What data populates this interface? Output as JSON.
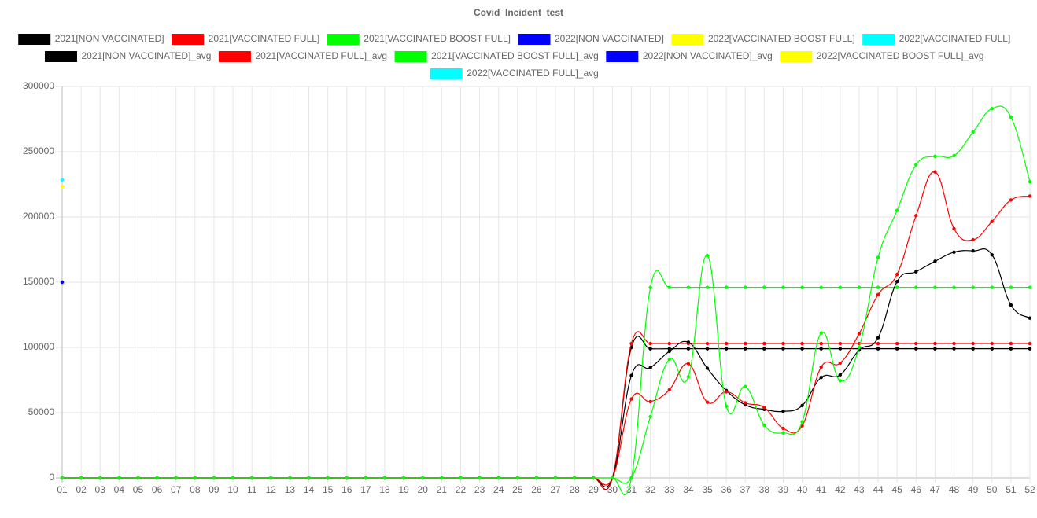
{
  "chart_data": {
    "type": "line",
    "title": "Covid_Incident_test",
    "categories": [
      "01",
      "02",
      "03",
      "04",
      "05",
      "06",
      "07",
      "08",
      "09",
      "10",
      "11",
      "12",
      "13",
      "14",
      "15",
      "16",
      "17",
      "18",
      "19",
      "20",
      "21",
      "22",
      "23",
      "24",
      "25",
      "26",
      "27",
      "28",
      "29",
      "30",
      "31",
      "32",
      "33",
      "34",
      "35",
      "36",
      "37",
      "38",
      "39",
      "40",
      "41",
      "42",
      "43",
      "44",
      "45",
      "46",
      "47",
      "48",
      "49",
      "50",
      "51",
      "52"
    ],
    "ylim": [
      0,
      300000
    ],
    "yticks": [
      0,
      50000,
      100000,
      150000,
      200000,
      250000,
      300000
    ],
    "grid": true,
    "series": [
      {
        "name": "2021[NON VACCINATED]",
        "color": "#000000",
        "values": [
          0,
          0,
          0,
          0,
          0,
          0,
          0,
          0,
          0,
          0,
          0,
          0,
          0,
          0,
          0,
          0,
          0,
          0,
          0,
          0,
          0,
          0,
          0,
          0,
          0,
          0,
          0,
          0,
          0,
          0,
          100000,
          99000,
          99000,
          99000,
          99000,
          99000,
          99000,
          99000,
          99000,
          99000,
          99000,
          99000,
          99000,
          99000,
          99000,
          99000,
          99000,
          99000,
          99000,
          99000,
          99000,
          99000
        ]
      },
      {
        "name": "2021[VACCINATED FULL]",
        "color": "#ff0000",
        "values": [
          0,
          0,
          0,
          0,
          0,
          0,
          0,
          0,
          0,
          0,
          0,
          0,
          0,
          0,
          0,
          0,
          0,
          0,
          0,
          0,
          0,
          0,
          0,
          0,
          0,
          0,
          0,
          0,
          0,
          0,
          103000,
          103000,
          103000,
          103000,
          103000,
          103000,
          103000,
          103000,
          103000,
          103000,
          103000,
          103000,
          103000,
          103000,
          103000,
          103000,
          103000,
          103000,
          103000,
          103000,
          103000,
          103000
        ]
      },
      {
        "name": "2021[VACCINATED BOOST FULL]",
        "color": "#00ff00",
        "values": [
          0,
          0,
          0,
          0,
          0,
          0,
          0,
          0,
          0,
          0,
          0,
          0,
          0,
          0,
          0,
          0,
          0,
          0,
          0,
          0,
          0,
          0,
          0,
          0,
          0,
          0,
          0,
          0,
          0,
          0,
          0,
          146000,
          146000,
          146000,
          146000,
          146000,
          146000,
          146000,
          146000,
          146000,
          146000,
          146000,
          146000,
          146000,
          146000,
          146000,
          146000,
          146000,
          146000,
          146000,
          146000,
          146000
        ]
      },
      {
        "name": "2022[NON VACCINATED]",
        "color": "#0000ff",
        "values": [
          150000,
          null,
          null,
          null,
          null,
          null,
          null,
          null,
          null,
          null,
          null,
          null,
          null,
          null,
          null,
          null,
          null,
          null,
          null,
          null,
          null,
          null,
          null,
          null,
          null,
          null,
          null,
          null,
          null,
          null,
          null,
          null,
          null,
          null,
          null,
          null,
          null,
          null,
          null,
          null,
          null,
          null,
          null,
          null,
          null,
          null,
          null,
          null,
          null,
          null,
          null,
          null
        ]
      },
      {
        "name": "2022[VACCINATED BOOST FULL]",
        "color": "#ffff00",
        "values": [
          223500,
          null,
          null,
          null,
          null,
          null,
          null,
          null,
          null,
          null,
          null,
          null,
          null,
          null,
          null,
          null,
          null,
          null,
          null,
          null,
          null,
          null,
          null,
          null,
          null,
          null,
          null,
          null,
          null,
          null,
          null,
          null,
          null,
          null,
          null,
          null,
          null,
          null,
          null,
          null,
          null,
          null,
          null,
          null,
          null,
          null,
          null,
          null,
          null,
          null,
          null,
          null
        ]
      },
      {
        "name": "2022[VACCINATED FULL]",
        "color": "#00ffff",
        "values": [
          228500,
          null,
          null,
          null,
          null,
          null,
          null,
          null,
          null,
          null,
          null,
          null,
          null,
          null,
          null,
          null,
          null,
          null,
          null,
          null,
          null,
          null,
          null,
          null,
          null,
          null,
          null,
          null,
          null,
          null,
          null,
          null,
          null,
          null,
          null,
          null,
          null,
          null,
          null,
          null,
          null,
          null,
          null,
          null,
          null,
          null,
          null,
          null,
          null,
          null,
          null,
          null
        ]
      },
      {
        "name": "2021[NON VACCINATED]_avg",
        "color": "#000000",
        "values": [
          0,
          0,
          0,
          0,
          0,
          0,
          0,
          0,
          0,
          0,
          0,
          0,
          0,
          0,
          0,
          0,
          0,
          0,
          0,
          0,
          0,
          0,
          0,
          0,
          0,
          0,
          0,
          0,
          0,
          0,
          78500,
          84500,
          97000,
          104000,
          84000,
          67000,
          56000,
          52500,
          51000,
          55500,
          77000,
          79000,
          98000,
          107500,
          150500,
          158000,
          166000,
          173000,
          174000,
          171000,
          132500,
          122500
        ]
      },
      {
        "name": "2021[VACCINATED FULL]_avg",
        "color": "#ff0000",
        "values": [
          0,
          0,
          0,
          0,
          0,
          0,
          0,
          0,
          0,
          0,
          0,
          0,
          0,
          0,
          0,
          0,
          0,
          0,
          0,
          0,
          0,
          0,
          0,
          0,
          0,
          0,
          0,
          0,
          0,
          0,
          60500,
          58500,
          67500,
          87500,
          58000,
          66000,
          57500,
          54000,
          38000,
          40000,
          85000,
          88000,
          110500,
          140500,
          156000,
          201000,
          234500,
          191000,
          182500,
          196500,
          213000,
          216000
        ]
      },
      {
        "name": "2021[VACCINATED BOOST FULL]_avg",
        "color": "#00ff00",
        "values": [
          0,
          0,
          0,
          0,
          0,
          0,
          0,
          0,
          0,
          0,
          0,
          0,
          0,
          0,
          0,
          0,
          0,
          0,
          0,
          0,
          0,
          0,
          0,
          0,
          0,
          0,
          0,
          0,
          0,
          0,
          0,
          47000,
          91000,
          77500,
          170500,
          55000,
          70000,
          40500,
          34500,
          43000,
          111000,
          74500,
          100000,
          169000,
          205000,
          240000,
          246500,
          247000,
          265000,
          283000,
          276500,
          227000
        ]
      },
      {
        "name": "2022[NON VACCINATED]_avg",
        "color": "#0000ff",
        "values": [
          150000,
          null,
          null,
          null,
          null,
          null,
          null,
          null,
          null,
          null,
          null,
          null,
          null,
          null,
          null,
          null,
          null,
          null,
          null,
          null,
          null,
          null,
          null,
          null,
          null,
          null,
          null,
          null,
          null,
          null,
          null,
          null,
          null,
          null,
          null,
          null,
          null,
          null,
          null,
          null,
          null,
          null,
          null,
          null,
          null,
          null,
          null,
          null,
          null,
          null,
          null,
          null
        ]
      },
      {
        "name": "2022[VACCINATED BOOST FULL]_avg",
        "color": "#ffff00",
        "values": [
          223500,
          null,
          null,
          null,
          null,
          null,
          null,
          null,
          null,
          null,
          null,
          null,
          null,
          null,
          null,
          null,
          null,
          null,
          null,
          null,
          null,
          null,
          null,
          null,
          null,
          null,
          null,
          null,
          null,
          null,
          null,
          null,
          null,
          null,
          null,
          null,
          null,
          null,
          null,
          null,
          null,
          null,
          null,
          null,
          null,
          null,
          null,
          null,
          null,
          null,
          null,
          null
        ]
      },
      {
        "name": "2022[VACCINATED FULL]_avg",
        "color": "#00ffff",
        "values": [
          228500,
          null,
          null,
          null,
          null,
          null,
          null,
          null,
          null,
          null,
          null,
          null,
          null,
          null,
          null,
          null,
          null,
          null,
          null,
          null,
          null,
          null,
          null,
          null,
          null,
          null,
          null,
          null,
          null,
          null,
          null,
          null,
          null,
          null,
          null,
          null,
          null,
          null,
          null,
          null,
          null,
          null,
          null,
          null,
          null,
          null,
          null,
          null,
          null,
          null,
          null,
          null
        ]
      }
    ]
  }
}
